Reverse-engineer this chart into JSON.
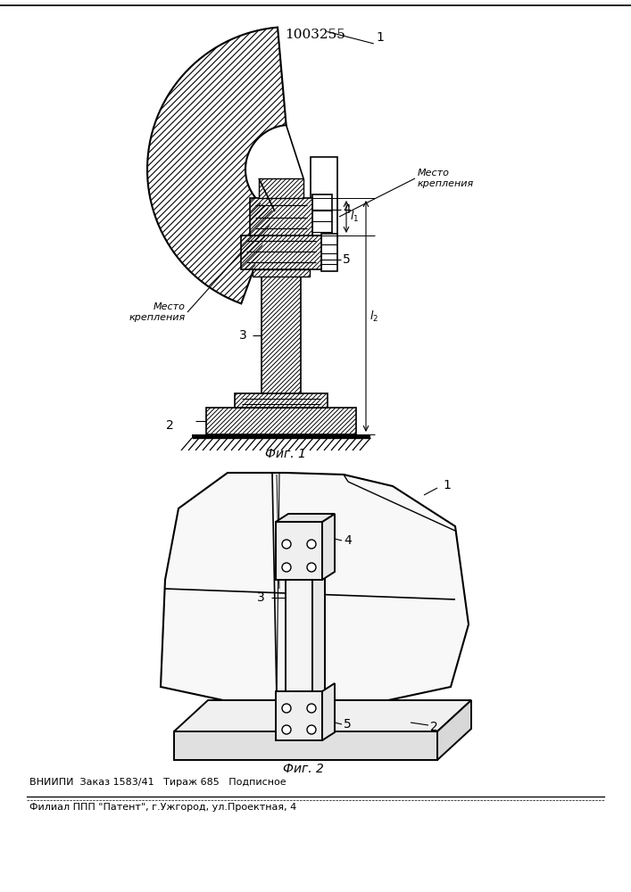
{
  "patent_number": "1003255",
  "fig1_caption": "Фиг. 1",
  "fig2_caption": "Фиг. 2",
  "footer_line1": "ВНИИПИ  Заказ 1583/41   Тираж 685   Подписное",
  "footer_line2": "Филиал ППП \"Патент\", г.Ужгород, ул.Проектная, 4",
  "label_mesto_krepleniya_top": "Место\nкрепления",
  "label_mesto_krepleniya_bot": "Место\nкрепления",
  "bg_color": "#ffffff",
  "line_color": "#000000"
}
